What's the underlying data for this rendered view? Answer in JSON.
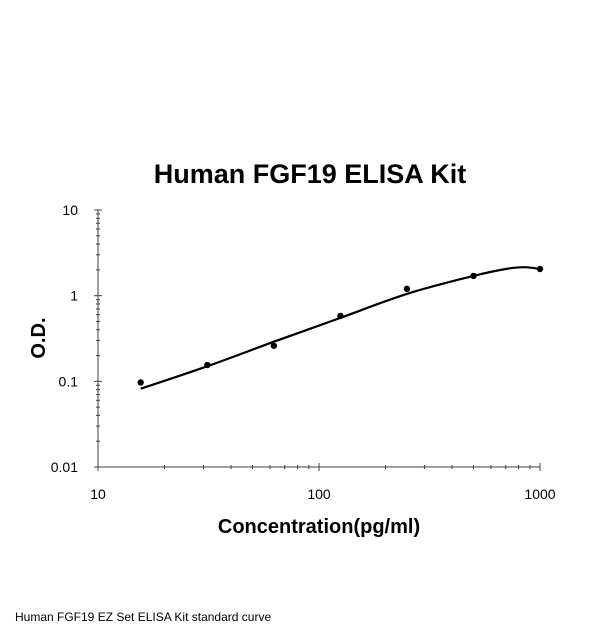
{
  "caption": "Human FGF19 EZ Set ELISA Kit standard curve",
  "chart_data": {
    "type": "scatter",
    "title": "Human FGF19 ELISA Kit",
    "xlabel": "Concentration(pg/ml)",
    "ylabel": "O.D.",
    "xscale": "log",
    "yscale": "log",
    "xlim": [
      10,
      1000
    ],
    "ylim": [
      0.01,
      10
    ],
    "xticks": [
      10,
      100,
      1000
    ],
    "xtick_labels": [
      "10",
      "100",
      "1000"
    ],
    "yticks": [
      0.01,
      0.1,
      1,
      10
    ],
    "ytick_labels": [
      "0.01",
      "0.1",
      "1",
      "10"
    ],
    "grid": false,
    "legend": "none",
    "series": [
      {
        "points": [
          {
            "x": 15.6,
            "y": 0.097
          },
          {
            "x": 31.25,
            "y": 0.155
          },
          {
            "x": 62.5,
            "y": 0.26
          },
          {
            "x": 125,
            "y": 0.58
          },
          {
            "x": 250,
            "y": 1.2
          },
          {
            "x": 500,
            "y": 1.7
          },
          {
            "x": 1000,
            "y": 2.05
          }
        ],
        "fit_curve": [
          {
            "x": 15.6,
            "y": 0.082
          },
          {
            "x": 31.25,
            "y": 0.15
          },
          {
            "x": 62.5,
            "y": 0.29
          },
          {
            "x": 125,
            "y": 0.55
          },
          {
            "x": 250,
            "y": 1.05
          },
          {
            "x": 500,
            "y": 1.7
          },
          {
            "x": 700,
            "y": 2.05
          },
          {
            "x": 850,
            "y": 2.15
          },
          {
            "x": 1000,
            "y": 2.05
          }
        ]
      }
    ],
    "colors": {
      "markers": "#000000",
      "curve": "#000000",
      "axes": "#404040"
    }
  }
}
